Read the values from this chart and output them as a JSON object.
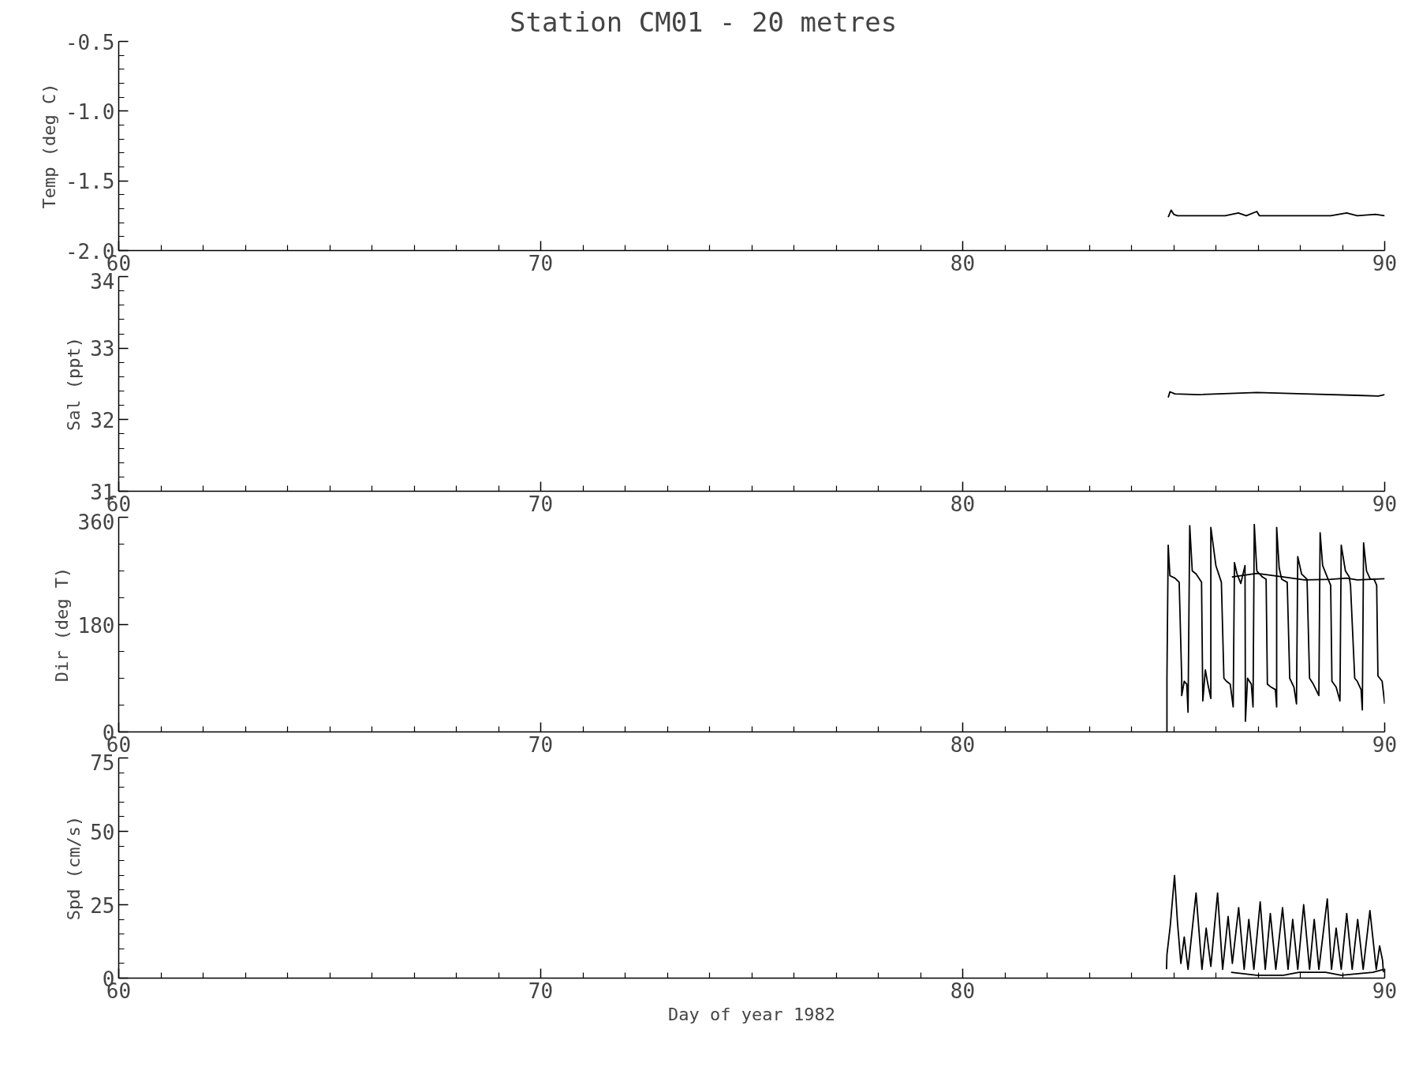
{
  "chart_data": [
    {
      "type": "line",
      "title": "Station CM01    -    20 metres",
      "ylabel": "Temp (deg C)",
      "xlim": [
        60,
        90
      ],
      "ylim": [
        -2.0,
        -0.5
      ],
      "xticks": [
        60,
        {
          "value": 61,
          "label": null
        },
        {
          "value": 62,
          "label": null
        },
        {
          "value": 63,
          "label": null
        },
        {
          "value": 64,
          "label": null
        },
        {
          "value": 65,
          "label": null
        },
        {
          "value": 66,
          "label": null
        },
        {
          "value": 67,
          "label": null
        },
        {
          "value": 68,
          "label": null
        },
        {
          "value": 69,
          "label": null
        },
        70,
        {
          "value": 71,
          "label": null
        },
        {
          "value": 72,
          "label": null
        },
        {
          "value": 73,
          "label": null
        },
        {
          "value": 74,
          "label": null
        },
        {
          "value": 75,
          "label": null
        },
        {
          "value": 76,
          "label": null
        },
        {
          "value": 77,
          "label": null
        },
        {
          "value": 78,
          "label": null
        },
        {
          "value": 79,
          "label": null
        },
        80,
        {
          "value": 81,
          "label": null
        },
        {
          "value": 82,
          "label": null
        },
        {
          "value": 83,
          "label": null
        },
        {
          "value": 84,
          "label": null
        },
        {
          "value": 85,
          "label": null
        },
        {
          "value": 86,
          "label": null
        },
        {
          "value": 87,
          "label": null
        },
        {
          "value": 88,
          "label": null
        },
        {
          "value": 89,
          "label": null
        },
        90
      ],
      "yticks": [
        {
          "value": -2.0,
          "label": "-2.0"
        },
        {
          "value": -1.9,
          "label": null
        },
        {
          "value": -1.8,
          "label": null
        },
        {
          "value": -1.7,
          "label": null
        },
        {
          "value": -1.6,
          "label": null
        },
        {
          "value": -1.5,
          "label": "-1.5"
        },
        {
          "value": -1.4,
          "label": null
        },
        {
          "value": -1.3,
          "label": null
        },
        {
          "value": -1.2,
          "label": null
        },
        {
          "value": -1.1,
          "label": null
        },
        {
          "value": -1.0,
          "label": "-1.0"
        },
        {
          "value": -0.9,
          "label": null
        },
        {
          "value": -0.8,
          "label": null
        },
        {
          "value": -0.7,
          "label": null
        },
        {
          "value": -0.6,
          "label": null
        },
        {
          "value": -0.5,
          "label": "-0.5"
        }
      ],
      "series": [
        {
          "color": "#000000",
          "x": [
            84.87,
            84.94,
            85.0,
            85.09,
            85.59,
            86.22,
            86.53,
            86.72,
            86.97,
            87.03,
            87.78,
            88.72,
            89.1,
            89.35,
            89.78,
            90.0
          ],
          "values": [
            -1.76,
            -1.71,
            -1.74,
            -1.75,
            -1.75,
            -1.75,
            -1.73,
            -1.75,
            -1.72,
            -1.75,
            -1.75,
            -1.75,
            -1.73,
            -1.75,
            -1.74,
            -1.75
          ]
        }
      ]
    },
    {
      "type": "line",
      "ylabel": "Sal (ppt)",
      "xlim": [
        60,
        90
      ],
      "ylim": [
        31,
        34
      ],
      "xticks": [
        60,
        {
          "value": 61,
          "label": null
        },
        {
          "value": 62,
          "label": null
        },
        {
          "value": 63,
          "label": null
        },
        {
          "value": 64,
          "label": null
        },
        {
          "value": 65,
          "label": null
        },
        {
          "value": 66,
          "label": null
        },
        {
          "value": 67,
          "label": null
        },
        {
          "value": 68,
          "label": null
        },
        {
          "value": 69,
          "label": null
        },
        70,
        {
          "value": 71,
          "label": null
        },
        {
          "value": 72,
          "label": null
        },
        {
          "value": 73,
          "label": null
        },
        {
          "value": 74,
          "label": null
        },
        {
          "value": 75,
          "label": null
        },
        {
          "value": 76,
          "label": null
        },
        {
          "value": 77,
          "label": null
        },
        {
          "value": 78,
          "label": null
        },
        {
          "value": 79,
          "label": null
        },
        80,
        {
          "value": 81,
          "label": null
        },
        {
          "value": 82,
          "label": null
        },
        {
          "value": 83,
          "label": null
        },
        {
          "value": 84,
          "label": null
        },
        {
          "value": 85,
          "label": null
        },
        {
          "value": 86,
          "label": null
        },
        {
          "value": 87,
          "label": null
        },
        {
          "value": 88,
          "label": null
        },
        {
          "value": 89,
          "label": null
        },
        90
      ],
      "yticks": [
        31,
        {
          "value": 31.2,
          "label": null
        },
        {
          "value": 31.4,
          "label": null
        },
        {
          "value": 31.6,
          "label": null
        },
        {
          "value": 31.8,
          "label": null
        },
        32,
        {
          "value": 32.2,
          "label": null
        },
        {
          "value": 32.4,
          "label": null
        },
        {
          "value": 32.6,
          "label": null
        },
        {
          "value": 32.8,
          "label": null
        },
        33,
        {
          "value": 33.2,
          "label": null
        },
        {
          "value": 33.4,
          "label": null
        },
        {
          "value": 33.6,
          "label": null
        },
        {
          "value": 33.8,
          "label": null
        },
        34
      ],
      "series": [
        {
          "color": "#000000",
          "x": [
            84.87,
            84.91,
            85.03,
            85.59,
            86.97,
            88.1,
            89.35,
            89.85,
            90.0
          ],
          "values": [
            32.31,
            32.39,
            32.36,
            32.35,
            32.38,
            32.36,
            32.34,
            32.33,
            32.35
          ]
        }
      ]
    },
    {
      "type": "line",
      "ylabel": "Dir (deg T)",
      "xlim": [
        60,
        90
      ],
      "ylim": [
        0,
        360
      ],
      "xticks": [
        60,
        {
          "value": 61,
          "label": null
        },
        {
          "value": 62,
          "label": null
        },
        {
          "value": 63,
          "label": null
        },
        {
          "value": 64,
          "label": null
        },
        {
          "value": 65,
          "label": null
        },
        {
          "value": 66,
          "label": null
        },
        {
          "value": 67,
          "label": null
        },
        {
          "value": 68,
          "label": null
        },
        {
          "value": 69,
          "label": null
        },
        70,
        {
          "value": 71,
          "label": null
        },
        {
          "value": 72,
          "label": null
        },
        {
          "value": 73,
          "label": null
        },
        {
          "value": 74,
          "label": null
        },
        {
          "value": 75,
          "label": null
        },
        {
          "value": 76,
          "label": null
        },
        {
          "value": 77,
          "label": null
        },
        {
          "value": 78,
          "label": null
        },
        {
          "value": 79,
          "label": null
        },
        80,
        {
          "value": 81,
          "label": null
        },
        {
          "value": 82,
          "label": null
        },
        {
          "value": 83,
          "label": null
        },
        {
          "value": 84,
          "label": null
        },
        {
          "value": 85,
          "label": null
        },
        {
          "value": 86,
          "label": null
        },
        {
          "value": 87,
          "label": null
        },
        {
          "value": 88,
          "label": null
        },
        {
          "value": 89,
          "label": null
        },
        90
      ],
      "yticks": [
        0,
        {
          "value": 45,
          "label": null
        },
        {
          "value": 90,
          "label": null
        },
        {
          "value": 135,
          "label": null
        },
        180,
        {
          "value": 225,
          "label": null
        },
        {
          "value": 270,
          "label": null
        },
        {
          "value": 315,
          "label": null
        },
        360
      ],
      "series": [
        {
          "color": "#000000",
          "x": [
            84.84,
            84.84,
            84.87,
            84.91,
            85.03,
            85.13,
            85.19,
            85.19,
            85.25,
            85.31,
            85.34,
            85.38,
            85.44,
            85.53,
            85.66,
            85.69,
            85.75,
            85.81,
            85.88,
            85.88,
            86.0,
            86.13,
            86.19,
            86.25,
            86.34,
            86.41,
            86.44,
            86.5,
            86.59,
            86.69,
            86.7,
            86.75,
            86.84,
            86.88,
            86.91,
            86.97,
            87.1,
            87.19,
            87.22,
            87.31,
            87.41,
            87.44,
            87.44,
            87.5,
            87.56,
            87.69,
            87.75,
            87.85,
            87.91,
            87.94,
            88.03,
            88.16,
            88.22,
            88.31,
            88.44,
            88.47,
            88.53,
            88.66,
            88.72,
            88.75,
            88.85,
            88.94,
            88.97,
            89.07,
            89.16,
            89.19,
            89.29,
            89.35,
            89.44,
            89.47,
            89.5,
            89.57,
            89.66,
            89.75,
            89.81,
            89.84,
            89.94,
            90.0
          ],
          "values": [
            0,
            90,
            313,
            262,
            258,
            251,
            90,
            61,
            85,
            80,
            33,
            346,
            270,
            265,
            251,
            52,
            104,
            80,
            56,
            343,
            279,
            251,
            90,
            85,
            80,
            42,
            284,
            265,
            249,
            279,
            18,
            90,
            80,
            42,
            348,
            270,
            260,
            256,
            80,
            75,
            71,
            42,
            343,
            275,
            256,
            251,
            90,
            75,
            47,
            294,
            265,
            256,
            90,
            80,
            61,
            334,
            279,
            256,
            246,
            85,
            75,
            52,
            313,
            270,
            260,
            246,
            90,
            85,
            71,
            37,
            317,
            270,
            256,
            256,
            246,
            94,
            85,
            47
          ]
        },
        {
          "color": "#000000",
          "x": [
            86.38,
            86.97,
            87.6,
            88.1,
            88.72,
            89.1,
            89.35,
            90.0
          ],
          "values": [
            260,
            266,
            260,
            255,
            256,
            258,
            255,
            257
          ]
        }
      ]
    },
    {
      "type": "line",
      "ylabel": "Spd (cm/s)",
      "xlabel": "Day of year 1982",
      "xlim": [
        60,
        90
      ],
      "ylim": [
        0,
        75
      ],
      "xticks": [
        60,
        {
          "value": 61,
          "label": null
        },
        {
          "value": 62,
          "label": null
        },
        {
          "value": 63,
          "label": null
        },
        {
          "value": 64,
          "label": null
        },
        {
          "value": 65,
          "label": null
        },
        {
          "value": 66,
          "label": null
        },
        {
          "value": 67,
          "label": null
        },
        {
          "value": 68,
          "label": null
        },
        {
          "value": 69,
          "label": null
        },
        70,
        {
          "value": 71,
          "label": null
        },
        {
          "value": 72,
          "label": null
        },
        {
          "value": 73,
          "label": null
        },
        {
          "value": 74,
          "label": null
        },
        {
          "value": 75,
          "label": null
        },
        {
          "value": 76,
          "label": null
        },
        {
          "value": 77,
          "label": null
        },
        {
          "value": 78,
          "label": null
        },
        {
          "value": 79,
          "label": null
        },
        80,
        {
          "value": 81,
          "label": null
        },
        {
          "value": 82,
          "label": null
        },
        {
          "value": 83,
          "label": null
        },
        {
          "value": 84,
          "label": null
        },
        {
          "value": 85,
          "label": null
        },
        {
          "value": 86,
          "label": null
        },
        {
          "value": 87,
          "label": null
        },
        {
          "value": 88,
          "label": null
        },
        {
          "value": 89,
          "label": null
        },
        90
      ],
      "yticks": [
        0,
        {
          "value": 5,
          "label": null
        },
        {
          "value": 10,
          "label": null
        },
        {
          "value": 15,
          "label": null
        },
        {
          "value": 20,
          "label": null
        },
        25,
        {
          "value": 30,
          "label": null
        },
        {
          "value": 35,
          "label": null
        },
        {
          "value": 40,
          "label": null
        },
        {
          "value": 45,
          "label": null
        },
        50,
        {
          "value": 55,
          "label": null
        },
        {
          "value": 60,
          "label": null
        },
        {
          "value": 65,
          "label": null
        },
        {
          "value": 70,
          "label": null
        },
        75
      ],
      "series": [
        {
          "color": "#000000",
          "x": [
            84.83,
            84.84,
            84.92,
            85.02,
            85.09,
            85.17,
            85.25,
            85.34,
            85.53,
            85.67,
            85.77,
            85.88,
            86.04,
            86.16,
            86.29,
            86.39,
            86.54,
            86.67,
            86.78,
            86.9,
            87.05,
            87.17,
            87.29,
            87.42,
            87.58,
            87.71,
            87.82,
            87.94,
            88.08,
            88.22,
            88.33,
            88.44,
            88.64,
            88.74,
            88.85,
            88.97,
            89.1,
            89.23,
            89.36,
            89.49,
            89.65,
            89.8,
            89.88,
            89.95,
            89.97
          ],
          "values": [
            3,
            8,
            18,
            35,
            19,
            5,
            14,
            3,
            29,
            3,
            17,
            4,
            29,
            3,
            21,
            5,
            24,
            3,
            20,
            3,
            26,
            3,
            22,
            3,
            24,
            3,
            20,
            3,
            25,
            3,
            20,
            3,
            27,
            3,
            17,
            3,
            22,
            3,
            20,
            3,
            23,
            3,
            11,
            6,
            2
          ]
        },
        {
          "color": "#000000",
          "x": [
            86.36,
            86.97,
            87.6,
            87.97,
            88.6,
            88.97,
            89.72,
            89.98
          ],
          "values": [
            2,
            1,
            1,
            2,
            2,
            1,
            2,
            3
          ]
        }
      ]
    }
  ]
}
